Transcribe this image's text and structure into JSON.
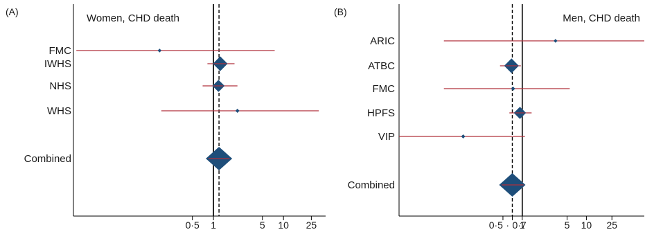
{
  "colors": {
    "ci_line": "#b0303c",
    "diamond": "#1e4e7a",
    "axis": "#000000",
    "text": "#1a1a1a"
  },
  "chart_data": [
    {
      "type": "forest",
      "panel_label": "(A)",
      "title": "Women, CHD death",
      "title_align": "left",
      "x_scale": "log",
      "x_ticks": [
        0.5,
        1,
        5,
        10,
        25
      ],
      "x_tick_labels": [
        "0·5",
        "1",
        "5",
        "10",
        "25"
      ],
      "xlim": [
        0.01,
        40
      ],
      "null_line": 1,
      "combined_line": 1.2,
      "studies": [
        {
          "label": "FMC",
          "estimate": 0.17,
          "ci": [
            0.011,
            7.5
          ],
          "weight": 0.03
        },
        {
          "label": "IWHS",
          "estimate": 1.25,
          "ci": [
            0.82,
            2.0
          ],
          "weight": 0.9
        },
        {
          "label": "NHS",
          "estimate": 1.18,
          "ci": [
            0.7,
            2.2
          ],
          "weight": 0.7
        },
        {
          "label": "WHS",
          "estimate": 2.2,
          "ci": [
            0.18,
            32
          ],
          "weight": 0.05
        }
      ],
      "combined": {
        "label": "Combined",
        "estimate": 1.2,
        "ci": [
          0.85,
          1.7
        ]
      }
    },
    {
      "type": "forest",
      "panel_label": "(B)",
      "title": "Men, CHD death",
      "title_align": "right",
      "x_scale": "log",
      "x_ticks": [
        0.5,
        0.7,
        1,
        5,
        10,
        25
      ],
      "x_tick_labels": [
        "0·5",
        "0·7",
        "1",
        "5",
        "10",
        "25"
      ],
      "tick_label_pairs": [
        [
          "0·5",
          "·",
          "0·7"
        ]
      ],
      "xlim": [
        0.012,
        80
      ],
      "null_line": 1,
      "combined_line": 0.7,
      "studies": [
        {
          "label": "ARIC",
          "estimate": 3.3,
          "ci": [
            0.06,
            80
          ],
          "weight": 0.03
        },
        {
          "label": "ATBC",
          "estimate": 0.68,
          "ci": [
            0.45,
            0.95
          ],
          "weight": 0.9
        },
        {
          "label": "FMC",
          "estimate": 0.72,
          "ci": [
            0.06,
            5.5
          ],
          "weight": 0.05
        },
        {
          "label": "HPFS",
          "estimate": 0.92,
          "ci": [
            0.63,
            1.4
          ],
          "weight": 0.7
        },
        {
          "label": "VIP",
          "estimate": 0.12,
          "ci": [
            0.012,
            1.1
          ],
          "weight": 0.05
        }
      ],
      "combined": {
        "label": "Combined",
        "estimate": 0.7,
        "ci": [
          0.48,
          1.05
        ]
      }
    }
  ]
}
